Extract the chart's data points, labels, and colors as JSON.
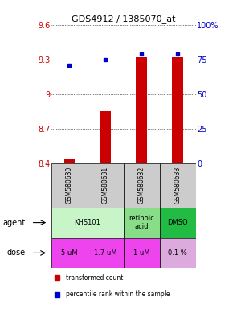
{
  "title": "GDS4912 / 1385070_at",
  "samples": [
    "GSM580630",
    "GSM580631",
    "GSM580632",
    "GSM580633"
  ],
  "bar_values": [
    8.43,
    8.85,
    9.32,
    9.32
  ],
  "percentile_values": [
    71,
    75,
    79,
    79
  ],
  "ylim_left": [
    8.4,
    9.6
  ],
  "ylim_right": [
    0,
    100
  ],
  "yticks_left": [
    8.4,
    8.7,
    9.0,
    9.3,
    9.6
  ],
  "yticks_right": [
    0,
    25,
    50,
    75,
    100
  ],
  "ytick_labels_left": [
    "8.4",
    "8.7",
    "9",
    "9.3",
    "9.6"
  ],
  "ytick_labels_right": [
    "0",
    "25",
    "50",
    "75",
    "100%"
  ],
  "bar_color": "#cc0000",
  "dot_color": "#0000cc",
  "agent_spans": [
    [
      0,
      2,
      "KHS101",
      "#c8f5c8"
    ],
    [
      2,
      3,
      "retinoic\nacid",
      "#88dd88"
    ],
    [
      3,
      4,
      "DMSO",
      "#22bb44"
    ]
  ],
  "dose_labels": [
    "5 uM",
    "1.7 uM",
    "1 uM",
    "0.1 %"
  ],
  "dose_colors": [
    "#ee44ee",
    "#ee44ee",
    "#ee44ee",
    "#ddaadd"
  ],
  "sample_bg_color": "#cccccc",
  "left_label_color": "#cc0000",
  "right_label_color": "#0000cc",
  "legend_red": "transformed count",
  "legend_blue": "percentile rank within the sample"
}
